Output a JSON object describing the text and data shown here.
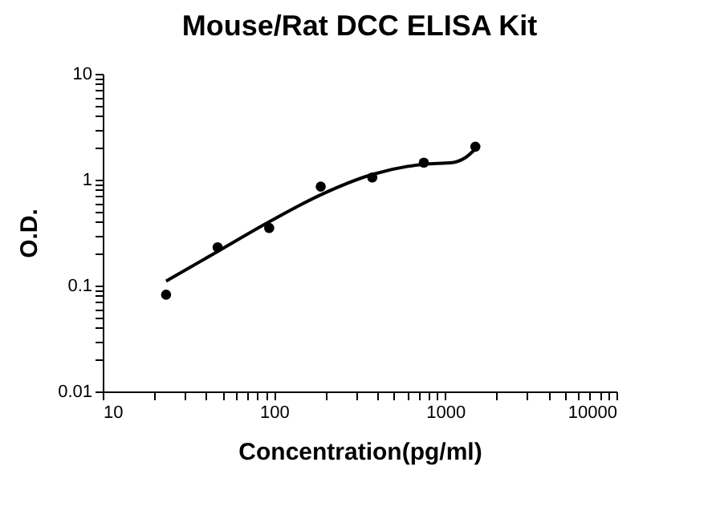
{
  "chart_data": {
    "type": "scatter",
    "title": "Mouse/Rat DCC ELISA Kit",
    "xlabel": "Concentration(pg/ml)",
    "ylabel": "O.D.",
    "log": "xy",
    "grid": false,
    "xlim": [
      10,
      10000
    ],
    "ylim": [
      0.01,
      10
    ],
    "xticks": [
      10,
      {
        "value": 20,
        "label": null
      },
      {
        "value": 30,
        "label": null
      },
      {
        "value": 40,
        "label": null
      },
      {
        "value": 50,
        "label": null
      },
      {
        "value": 60,
        "label": null
      },
      {
        "value": 70,
        "label": null
      },
      {
        "value": 80,
        "label": null
      },
      {
        "value": 90,
        "label": null
      },
      100,
      {
        "value": 200,
        "label": null
      },
      {
        "value": 300,
        "label": null
      },
      {
        "value": 400,
        "label": null
      },
      {
        "value": 500,
        "label": null
      },
      {
        "value": 600,
        "label": null
      },
      {
        "value": 700,
        "label": null
      },
      {
        "value": 800,
        "label": null
      },
      {
        "value": 900,
        "label": null
      },
      1000,
      {
        "value": 2000,
        "label": null
      },
      {
        "value": 3000,
        "label": null
      },
      {
        "value": 4000,
        "label": null
      },
      {
        "value": 5000,
        "label": null
      },
      {
        "value": 6000,
        "label": null
      },
      {
        "value": 7000,
        "label": null
      },
      {
        "value": 8000,
        "label": null
      },
      {
        "value": 9000,
        "label": null
      },
      10000
    ],
    "yticks": [
      0.01,
      {
        "value": 0.02,
        "label": null
      },
      {
        "value": 0.03,
        "label": null
      },
      {
        "value": 0.04,
        "label": null
      },
      {
        "value": 0.05,
        "label": null
      },
      {
        "value": 0.06,
        "label": null
      },
      {
        "value": 0.07,
        "label": null
      },
      {
        "value": 0.08,
        "label": null
      },
      {
        "value": 0.09,
        "label": null
      },
      0.1,
      {
        "value": 0.2,
        "label": null
      },
      {
        "value": 0.3,
        "label": null
      },
      {
        "value": 0.4,
        "label": null
      },
      {
        "value": 0.5,
        "label": null
      },
      {
        "value": 0.6,
        "label": null
      },
      {
        "value": 0.7,
        "label": null
      },
      {
        "value": 0.8,
        "label": null
      },
      {
        "value": 0.9,
        "label": null
      },
      1,
      {
        "value": 2,
        "label": null
      },
      {
        "value": 3,
        "label": null
      },
      {
        "value": 4,
        "label": null
      },
      {
        "value": 5,
        "label": null
      },
      {
        "value": 6,
        "label": null
      },
      {
        "value": 7,
        "label": null
      },
      {
        "value": 8,
        "label": null
      },
      {
        "value": 9,
        "label": null
      },
      10
    ],
    "series": [
      {
        "type": "line",
        "color": "#000000",
        "marker": "none",
        "line_style": "solid",
        "x": [
          23.44,
          46.88,
          93.75,
          187.5,
          375,
          750,
          1100,
          1300,
          1500
        ],
        "values": [
          0.11,
          0.21,
          0.4,
          0.72,
          1.12,
          1.4,
          1.45,
          1.6,
          1.95
        ]
      },
      {
        "color": "#000000",
        "marker": "circle",
        "x": [
          23.44,
          46.88,
          93.75,
          187.5,
          375,
          750,
          1500
        ],
        "values": [
          0.082,
          0.23,
          0.35,
          0.86,
          1.05,
          1.45,
          2.05
        ]
      }
    ]
  }
}
